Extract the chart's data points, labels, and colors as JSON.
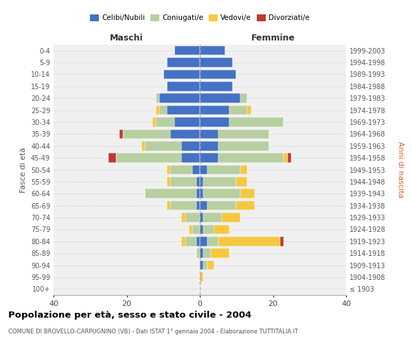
{
  "age_groups": [
    "100+",
    "95-99",
    "90-94",
    "85-89",
    "80-84",
    "75-79",
    "70-74",
    "65-69",
    "60-64",
    "55-59",
    "50-54",
    "45-49",
    "40-44",
    "35-39",
    "30-34",
    "25-29",
    "20-24",
    "15-19",
    "10-14",
    "5-9",
    "0-4"
  ],
  "birth_years": [
    "≤ 1903",
    "1904-1908",
    "1909-1913",
    "1914-1918",
    "1919-1923",
    "1924-1928",
    "1929-1933",
    "1934-1938",
    "1939-1943",
    "1944-1948",
    "1949-1953",
    "1954-1958",
    "1959-1963",
    "1964-1968",
    "1969-1973",
    "1974-1978",
    "1979-1983",
    "1984-1988",
    "1989-1993",
    "1994-1998",
    "1999-2003"
  ],
  "colors": {
    "celibi": "#4472c4",
    "coniugati": "#b8cfa0",
    "vedovi": "#f5c842",
    "divorziati": "#c0392b"
  },
  "males": {
    "celibi": [
      0,
      0,
      0,
      0,
      1,
      0,
      0,
      1,
      1,
      1,
      2,
      5,
      5,
      8,
      7,
      9,
      11,
      9,
      10,
      9,
      7
    ],
    "coniugati": [
      0,
      0,
      0,
      1,
      3,
      2,
      4,
      7,
      14,
      7,
      6,
      18,
      10,
      13,
      5,
      2,
      1,
      0,
      0,
      0,
      0
    ],
    "vedovi": [
      0,
      0,
      0,
      0,
      1,
      1,
      1,
      1,
      0,
      1,
      1,
      0,
      1,
      0,
      1,
      1,
      0,
      0,
      0,
      0,
      0
    ],
    "divorziati": [
      0,
      0,
      0,
      0,
      0,
      0,
      0,
      0,
      0,
      0,
      0,
      2,
      0,
      1,
      0,
      0,
      0,
      0,
      0,
      0,
      0
    ]
  },
  "females": {
    "celibi": [
      0,
      0,
      1,
      1,
      2,
      1,
      1,
      2,
      1,
      1,
      2,
      5,
      5,
      5,
      8,
      8,
      11,
      9,
      10,
      9,
      7
    ],
    "coniugati": [
      0,
      0,
      1,
      2,
      3,
      3,
      5,
      8,
      10,
      9,
      9,
      18,
      14,
      14,
      15,
      5,
      2,
      0,
      0,
      0,
      0
    ],
    "vedovi": [
      0,
      1,
      2,
      5,
      17,
      4,
      5,
      5,
      4,
      3,
      2,
      1,
      0,
      0,
      0,
      1,
      0,
      0,
      0,
      0,
      0
    ],
    "divorziati": [
      0,
      0,
      0,
      0,
      1,
      0,
      0,
      0,
      0,
      0,
      0,
      1,
      0,
      0,
      0,
      0,
      0,
      0,
      0,
      0,
      0
    ]
  },
  "xlim": 40,
  "title": "Popolazione per età, sesso e stato civile - 2004",
  "subtitle": "COMUNE DI BROVELLO-CARPUGNINO (VB) - Dati ISTAT 1° gennaio 2004 - Elaborazione TUTTITALIA.IT",
  "ylabel_left": "Fasce di età",
  "ylabel_right": "Anni di nascita",
  "maschi_label": "Maschi",
  "femmine_label": "Femmine",
  "legend_labels": [
    "Celibi/Nubili",
    "Coniugati/e",
    "Vedovi/e",
    "Divorziati/e"
  ]
}
